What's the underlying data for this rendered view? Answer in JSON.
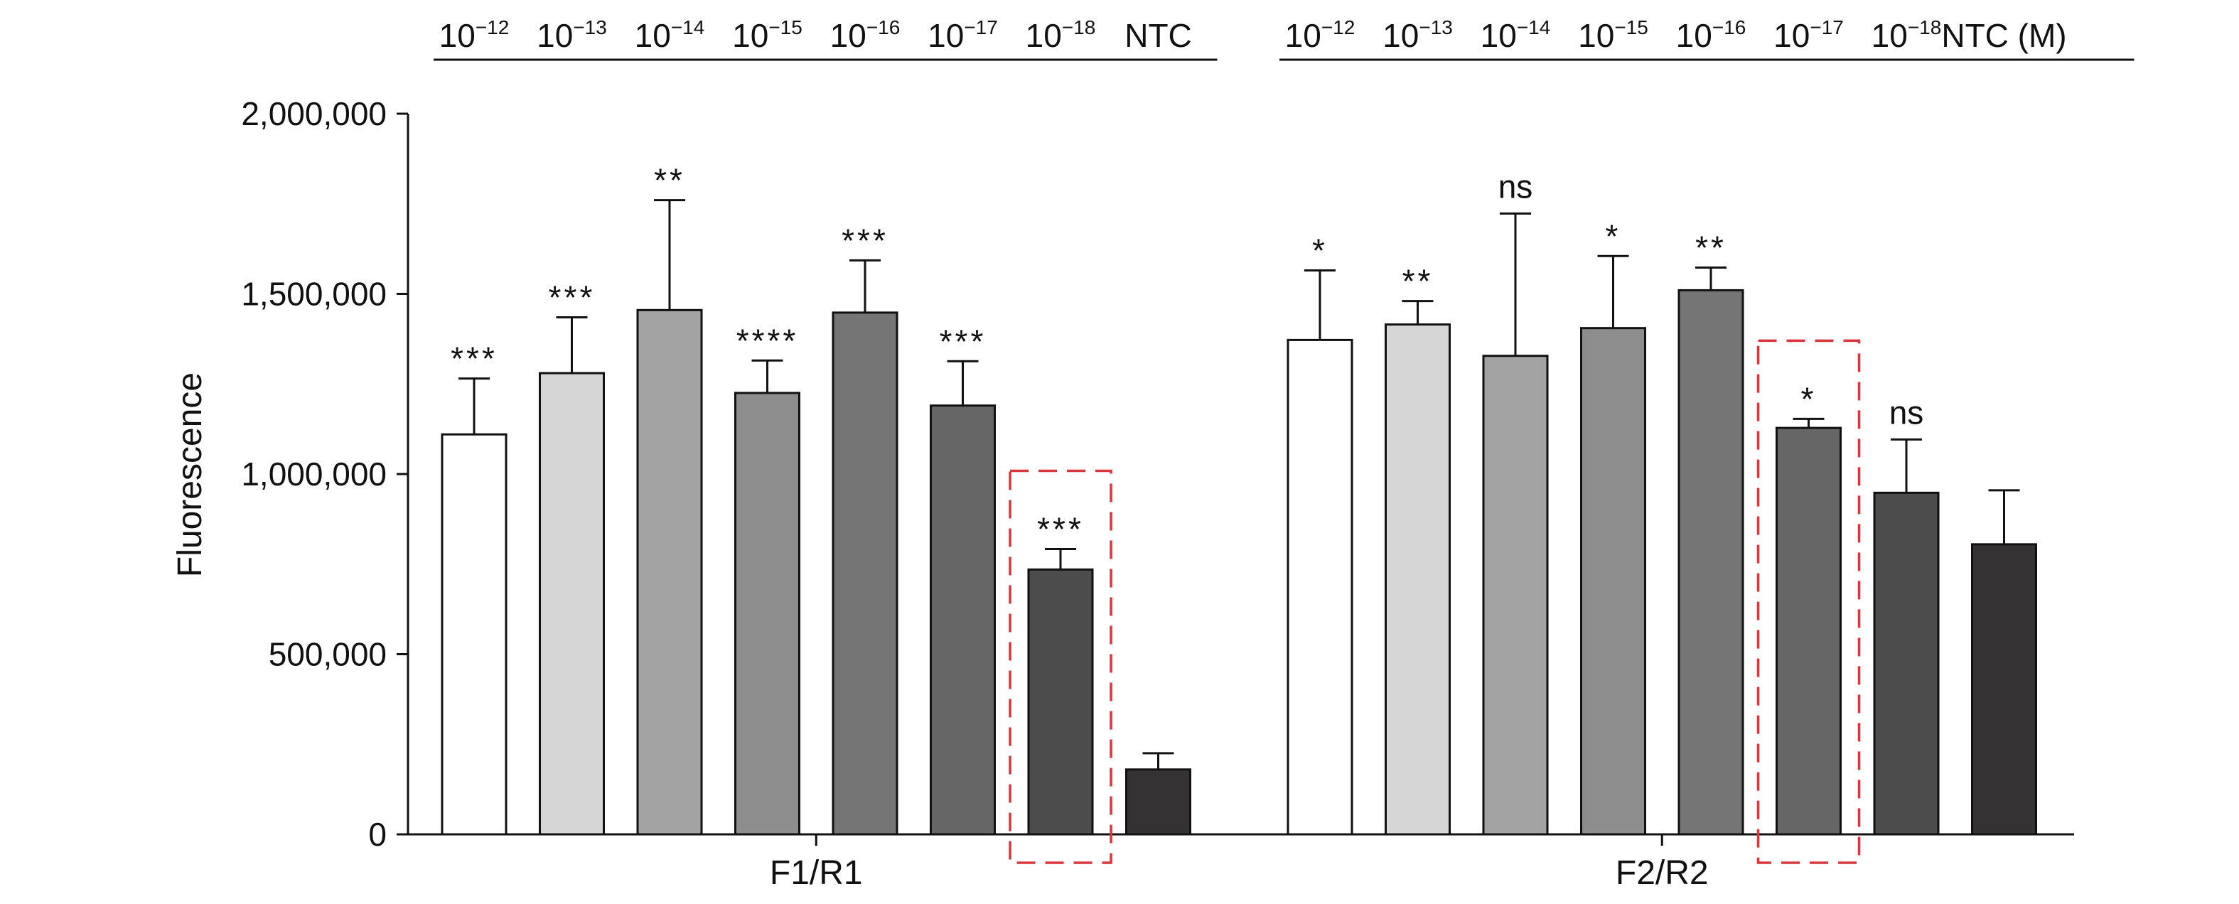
{
  "chart_data": {
    "type": "bar",
    "ylabel": "Fluorescence",
    "ylim": [
      0,
      2000000
    ],
    "yticks": [
      "0",
      "500,000",
      "1,000,000",
      "1,500,000",
      "2,000,000"
    ],
    "ytick_values": [
      0,
      500000,
      1000000,
      1500000,
      2000000
    ],
    "groups": [
      {
        "name": "F1/R1",
        "bars": [
          {
            "category": "10^-12",
            "value": 1110000,
            "error": 155000,
            "significance": "***",
            "color": "#ffffff"
          },
          {
            "category": "10^-13",
            "value": 1280000,
            "error": 155000,
            "significance": "***",
            "color": "#d6d6d6"
          },
          {
            "category": "10^-14",
            "value": 1455000,
            "error": 305000,
            "significance": "**",
            "color": "#a3a3a3"
          },
          {
            "category": "10^-15",
            "value": 1225000,
            "error": 90000,
            "significance": "****",
            "color": "#8e8d8d"
          },
          {
            "category": "10^-16",
            "value": 1448000,
            "error": 145000,
            "significance": "***",
            "color": "#767575"
          },
          {
            "category": "10^-17",
            "value": 1190000,
            "error": 123000,
            "significance": "***",
            "color": "#676667"
          },
          {
            "category": "10^-18",
            "value": 735000,
            "error": 57000,
            "significance": "***",
            "color": "#4d4c4c",
            "highlight": true
          },
          {
            "category": "NTC",
            "value": 180000,
            "error": 45000,
            "significance": "",
            "color": "#353233"
          }
        ]
      },
      {
        "name": "F2/R2",
        "bars": [
          {
            "category": "10^-12",
            "value": 1372000,
            "error": 193000,
            "significance": "*",
            "color": "#ffffff"
          },
          {
            "category": "10^-13",
            "value": 1415000,
            "error": 65000,
            "significance": "**",
            "color": "#d6d6d6"
          },
          {
            "category": "10^-14",
            "value": 1328000,
            "error": 395000,
            "significance": "ns",
            "color": "#a3a3a3"
          },
          {
            "category": "10^-15",
            "value": 1405000,
            "error": 200000,
            "significance": "*",
            "color": "#8e8d8d"
          },
          {
            "category": "10^-16",
            "value": 1510000,
            "error": 63000,
            "significance": "**",
            "color": "#767575"
          },
          {
            "category": "10^-17",
            "value": 1128000,
            "error": 25000,
            "significance": "*",
            "color": "#676667",
            "highlight": true
          },
          {
            "category": "10^-18",
            "value": 948000,
            "error": 148000,
            "significance": "ns",
            "color": "#4d4c4c"
          },
          {
            "category": "NTC",
            "value": 805000,
            "error": 150000,
            "significance": "",
            "color": "#353233"
          }
        ]
      }
    ],
    "top_labels": [
      {
        "base": "10",
        "exp": "−12"
      },
      {
        "base": "10",
        "exp": "−13"
      },
      {
        "base": "10",
        "exp": "−14"
      },
      {
        "base": "10",
        "exp": "−15"
      },
      {
        "base": "10",
        "exp": "−16"
      },
      {
        "base": "10",
        "exp": "−17"
      },
      {
        "base": "10",
        "exp": "−18"
      },
      {
        "base": "NTC",
        "exp": ""
      }
    ],
    "unit_suffix": " (M)",
    "highlight_color": "#d9363e",
    "bar_outline_color": "#111111",
    "legend": "none",
    "grid": false
  }
}
